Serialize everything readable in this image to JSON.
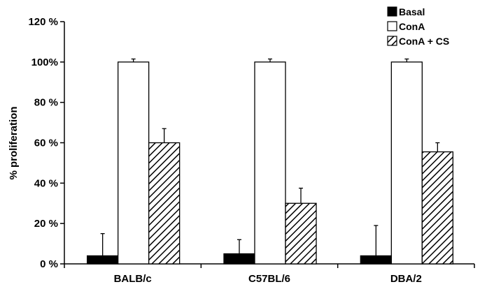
{
  "chart_data": {
    "type": "bar",
    "title": "",
    "xlabel": "",
    "ylabel": "% proliferation",
    "ylim": [
      0,
      120
    ],
    "yticks": [
      0,
      20,
      40,
      60,
      80,
      100,
      120
    ],
    "ytick_labels": [
      "0 %",
      "20 %",
      "40 %",
      "60 %",
      "80 %",
      "100%",
      "120 %"
    ],
    "categories": [
      "BALB/c",
      "C57BL/6",
      "DBA/2"
    ],
    "grid": false,
    "legend_position": "top-right",
    "series": [
      {
        "name": "Basal",
        "fill": "solid",
        "color": "#000000",
        "values": [
          4,
          5,
          4
        ],
        "errors": [
          11,
          7,
          15
        ]
      },
      {
        "name": "ConA",
        "fill": "none",
        "color": "#ffffff",
        "values": [
          100,
          100,
          100
        ],
        "errors": [
          1.5,
          1.5,
          1.5
        ]
      },
      {
        "name": "ConA + CS",
        "fill": "hatch",
        "color": "#000000",
        "values": [
          60,
          30,
          55.5
        ],
        "errors": [
          7,
          7.5,
          4.5
        ]
      }
    ]
  }
}
